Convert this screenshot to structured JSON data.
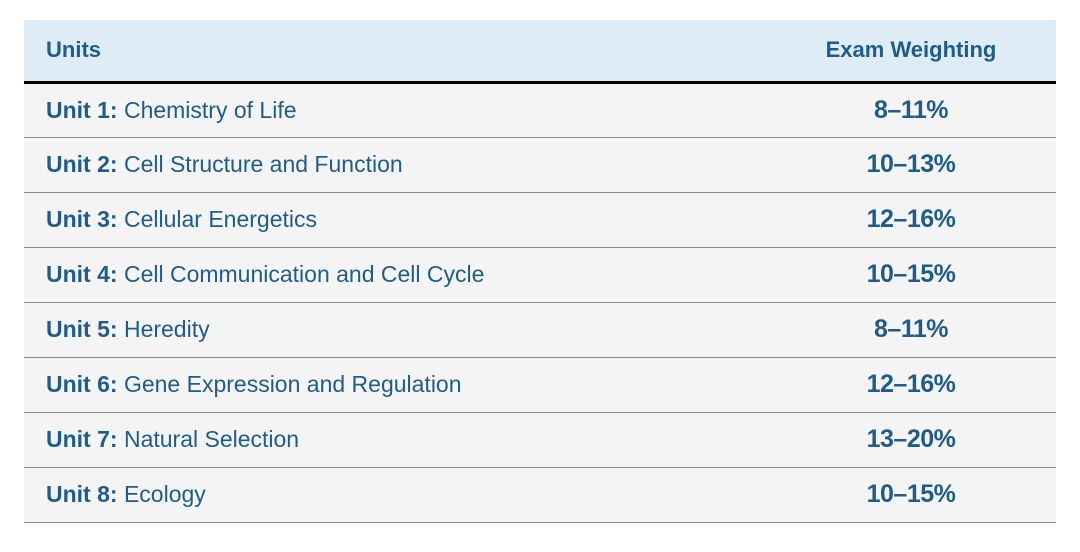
{
  "colors": {
    "header_bg": "#deecf5",
    "header_text": "#1f5c8b",
    "body_bg": "#f4f4f4",
    "unit_text": "#1f5c8b",
    "weight_text": "#1f5c8b",
    "black_border": "#000000",
    "row_border": "#8a8a8a"
  },
  "headers": {
    "units": "Units",
    "weighting": "Exam Weighting"
  },
  "rows": [
    {
      "unit": "Unit 1:",
      "title": " Chemistry of Life",
      "weight": "8–11%"
    },
    {
      "unit": "Unit 2:",
      "title": " Cell Structure and Function",
      "weight": "10–13%"
    },
    {
      "unit": "Unit 3:",
      "title": " Cellular Energetics",
      "weight": "12–16%"
    },
    {
      "unit": "Unit 4:",
      "title": " Cell Communication and Cell Cycle",
      "weight": "10–15%"
    },
    {
      "unit": "Unit 5:",
      "title": " Heredity",
      "weight": "8–11%"
    },
    {
      "unit": "Unit 6:",
      "title": " Gene Expression and Regulation",
      "weight": "12–16%"
    },
    {
      "unit": "Unit 7:",
      "title": " Natural Selection",
      "weight": "13–20%"
    },
    {
      "unit": "Unit 8:",
      "title": " Ecology",
      "weight": "10–15%"
    }
  ]
}
